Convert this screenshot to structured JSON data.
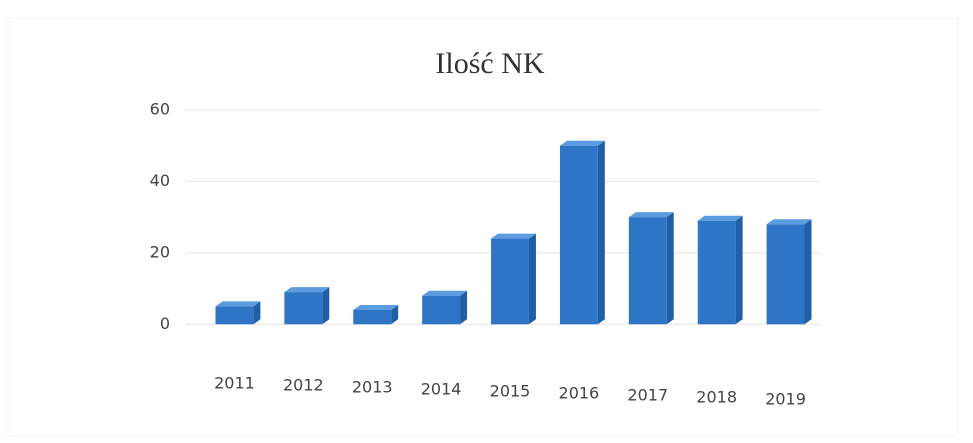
{
  "chart_data": {
    "type": "bar",
    "title": "Ilość NK",
    "categories": [
      "2011",
      "2012",
      "2013",
      "2014",
      "2015",
      "2016",
      "2017",
      "2018",
      "2019"
    ],
    "values": [
      5,
      9,
      4,
      8,
      24,
      50,
      30,
      29,
      28
    ],
    "color": "#2e75c6",
    "ylim": [
      -10,
      60
    ],
    "yticks": [
      0,
      20,
      40,
      60
    ],
    "grid": true
  }
}
